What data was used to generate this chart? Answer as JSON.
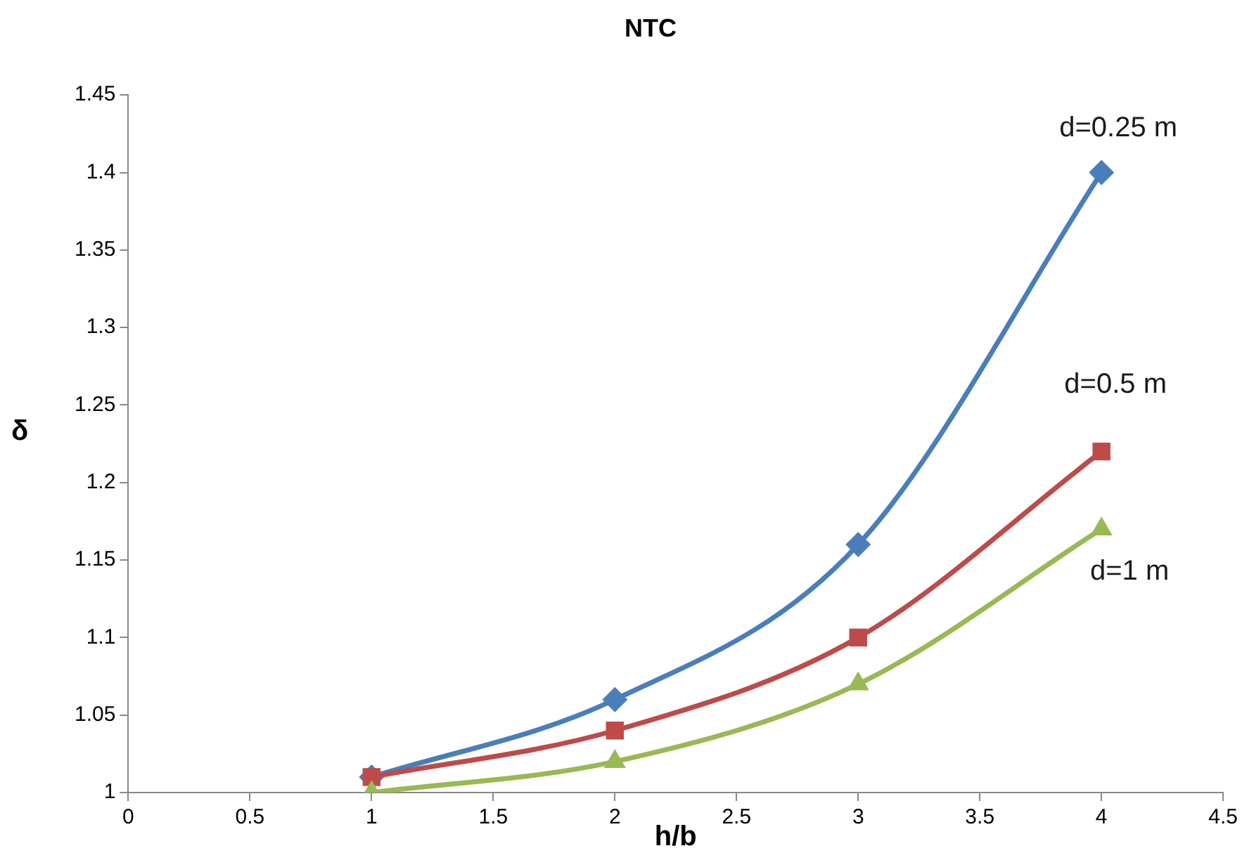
{
  "chart_data": {
    "type": "line",
    "title": "NTC",
    "xlabel": "h/b",
    "ylabel": "δ",
    "x": [
      1,
      2,
      3,
      4
    ],
    "series": [
      {
        "name": "d=0.25 m",
        "color": "#4a7ebb",
        "marker": "diamond",
        "values": [
          1.01,
          1.06,
          1.16,
          1.4
        ]
      },
      {
        "name": "d=0.5 m",
        "color": "#be4b48",
        "marker": "square",
        "values": [
          1.01,
          1.04,
          1.1,
          1.22
        ]
      },
      {
        "name": "d=1 m",
        "color": "#98b954",
        "marker": "triangle",
        "values": [
          1.0,
          1.02,
          1.07,
          1.17
        ]
      }
    ],
    "xlim": [
      0,
      4.5
    ],
    "xticks": [
      0,
      0.5,
      1,
      1.5,
      2,
      2.5,
      3,
      3.5,
      4,
      4.5
    ],
    "ylim": [
      1,
      1.45
    ],
    "yticks": [
      1,
      1.05,
      1.1,
      1.15,
      1.2,
      1.25,
      1.3,
      1.35,
      1.4,
      1.45
    ],
    "grid": false,
    "legend": false
  }
}
